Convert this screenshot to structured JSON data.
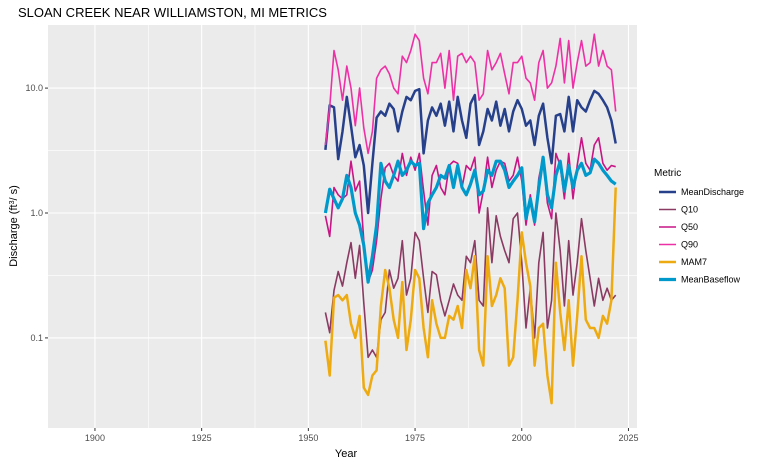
{
  "chart_data": {
    "type": "line",
    "title": "SLOAN CREEK NEAR WILLIAMSTON, MI  METRICS",
    "xlabel": "Year",
    "ylabel_main": "Discharge (ft",
    "ylabel_sup": "3",
    "ylabel_tail": "/ s)",
    "xlim": [
      1889,
      2027
    ],
    "ylim": [
      0.019,
      32
    ],
    "y_scale": "log",
    "grid": true,
    "x_ticks": [
      1900,
      1925,
      1950,
      1975,
      2000,
      2025
    ],
    "x_tick_labels": [
      "1900",
      "1925",
      "1950",
      "1975",
      "2000",
      "2025"
    ],
    "y_ticks": [
      0.1,
      1,
      10
    ],
    "y_tick_labels": [
      "0.1",
      "1.0",
      "10.0"
    ],
    "legend_title": "Metric",
    "legend_position": "right",
    "x": [
      1954,
      1955,
      1956,
      1957,
      1958,
      1959,
      1960,
      1961,
      1962,
      1963,
      1964,
      1965,
      1966,
      1967,
      1968,
      1969,
      1970,
      1971,
      1972,
      1973,
      1974,
      1975,
      1976,
      1977,
      1978,
      1979,
      1980,
      1981,
      1982,
      1983,
      1984,
      1985,
      1986,
      1987,
      1988,
      1989,
      1990,
      1991,
      1992,
      1993,
      1994,
      1995,
      1996,
      1997,
      1998,
      1999,
      2000,
      2001,
      2002,
      2003,
      2004,
      2005,
      2006,
      2007,
      2008,
      2009,
      2010,
      2011,
      2012,
      2013,
      2014,
      2015,
      2016,
      2017,
      2018,
      2019,
      2020,
      2021,
      2022
    ],
    "series": [
      {
        "name": "MeanDischarge",
        "color": "#27408b",
        "width": 2.5,
        "values": [
          3.2,
          7.3,
          7.0,
          2.7,
          4.5,
          8.5,
          5.0,
          2.8,
          3.5,
          2.4,
          1.0,
          2.5,
          5.8,
          6.5,
          6.0,
          7.5,
          6.8,
          4.5,
          6.5,
          8.5,
          8.0,
          9.5,
          9.8,
          3.0,
          5.5,
          7.0,
          6.0,
          7.5,
          5.0,
          7.8,
          4.5,
          8.5,
          5.5,
          4.0,
          7.5,
          8.8,
          3.5,
          4.5,
          6.8,
          5.5,
          7.8,
          5.0,
          6.8,
          4.5,
          6.5,
          8.0,
          6.8,
          5.0,
          5.5,
          3.5,
          6.0,
          7.5,
          4.0,
          2.5,
          6.0,
          6.2,
          4.5,
          8.5,
          4.5,
          8.0,
          7.0,
          6.5,
          8.0,
          9.5,
          9.0,
          8.0,
          7.0,
          5.5,
          3.6
        ]
      },
      {
        "name": "Q10",
        "color": "#8b3a62",
        "width": 1.6,
        "values": [
          0.16,
          0.11,
          0.24,
          0.34,
          0.26,
          0.4,
          0.58,
          0.3,
          0.55,
          0.19,
          0.07,
          0.08,
          0.07,
          0.14,
          0.16,
          0.35,
          0.25,
          0.3,
          0.6,
          0.22,
          0.3,
          0.7,
          0.6,
          0.3,
          0.16,
          0.34,
          0.32,
          0.2,
          0.15,
          0.2,
          0.27,
          0.22,
          0.2,
          0.45,
          0.4,
          0.6,
          0.2,
          0.18,
          1.1,
          0.4,
          0.95,
          0.65,
          0.5,
          0.4,
          0.9,
          1.0,
          0.4,
          0.12,
          0.25,
          0.1,
          0.4,
          0.7,
          0.12,
          0.2,
          1.0,
          0.5,
          0.18,
          0.6,
          0.22,
          0.4,
          0.9,
          0.5,
          0.3,
          0.18,
          0.3,
          0.2,
          0.25,
          0.2,
          0.22
        ]
      },
      {
        "name": "Q50",
        "color": "#c71585",
        "width": 1.6,
        "values": [
          0.95,
          0.65,
          1.6,
          1.4,
          1.3,
          1.4,
          2.6,
          1.5,
          1.8,
          0.6,
          0.28,
          0.35,
          0.6,
          1.3,
          2.3,
          2.5,
          2.0,
          1.8,
          3.0,
          2.0,
          2.8,
          2.2,
          3.0,
          1.5,
          0.8,
          2.0,
          2.4,
          1.6,
          1.4,
          2.4,
          2.6,
          2.5,
          1.6,
          2.4,
          2.2,
          2.8,
          1.0,
          1.5,
          2.8,
          1.6,
          2.2,
          2.6,
          2.5,
          1.8,
          2.0,
          2.8,
          1.8,
          0.8,
          1.4,
          0.8,
          1.9,
          2.8,
          1.2,
          0.9,
          3.0,
          2.4,
          1.3,
          3.0,
          1.3,
          2.4,
          4.0,
          2.5,
          2.2,
          3.5,
          4.0,
          2.5,
          2.2,
          2.4,
          2.35
        ]
      },
      {
        "name": "Q90",
        "color": "#ee30a7",
        "width": 1.6,
        "values": [
          3.5,
          7.0,
          20.0,
          14.0,
          8.0,
          15.0,
          10.0,
          5.0,
          10.0,
          4.8,
          3.0,
          4.5,
          12.0,
          14.0,
          15.0,
          13.0,
          10.0,
          9.0,
          18.0,
          16.0,
          20.0,
          27.0,
          24.0,
          12.0,
          9.0,
          16.0,
          16.0,
          19.0,
          10.0,
          20.0,
          8.0,
          18.0,
          19.0,
          16.0,
          18.0,
          16.0,
          8.0,
          9.0,
          20.0,
          14.0,
          16.0,
          19.0,
          13.0,
          9.0,
          16.0,
          16.0,
          18.0,
          12.0,
          11.0,
          8.0,
          16.0,
          20.0,
          10.0,
          11.0,
          15.0,
          25.0,
          11.0,
          24.0,
          10.0,
          16.0,
          24.0,
          15.0,
          16.0,
          27.0,
          15.0,
          20.0,
          15.0,
          14.0,
          6.5
        ]
      },
      {
        "name": "MAM7",
        "color": "#eeaa11",
        "width": 2.5,
        "values": [
          0.095,
          0.05,
          0.21,
          0.22,
          0.2,
          0.22,
          0.13,
          0.1,
          0.15,
          0.04,
          0.035,
          0.05,
          0.055,
          0.18,
          0.35,
          0.25,
          0.14,
          0.1,
          0.28,
          0.08,
          0.14,
          0.35,
          0.3,
          0.12,
          0.07,
          0.2,
          0.13,
          0.1,
          0.1,
          0.15,
          0.14,
          0.18,
          0.12,
          0.35,
          0.25,
          0.45,
          0.08,
          0.06,
          0.45,
          0.18,
          0.22,
          0.3,
          0.25,
          0.06,
          0.07,
          0.2,
          0.7,
          0.4,
          0.26,
          0.06,
          0.12,
          0.13,
          0.05,
          0.03,
          0.4,
          0.16,
          0.08,
          0.2,
          0.06,
          0.15,
          0.45,
          0.14,
          0.12,
          0.12,
          0.1,
          0.15,
          0.13,
          0.2,
          1.6
        ]
      },
      {
        "name": "MeanBaseflow",
        "color": "#0099cc",
        "width": 3.2,
        "values": [
          1.0,
          1.55,
          1.3,
          1.1,
          1.3,
          2.0,
          1.6,
          1.0,
          0.8,
          0.55,
          0.28,
          0.45,
          0.8,
          2.5,
          1.8,
          1.6,
          2.0,
          2.6,
          2.0,
          2.2,
          2.6,
          2.4,
          2.5,
          0.75,
          1.2,
          1.4,
          1.6,
          2.0,
          1.9,
          2.4,
          1.6,
          2.4,
          1.6,
          1.4,
          1.7,
          2.2,
          1.4,
          1.5,
          2.2,
          2.0,
          2.6,
          2.6,
          2.2,
          1.6,
          1.8,
          2.0,
          2.3,
          0.9,
          1.3,
          0.85,
          1.6,
          2.8,
          1.4,
          1.1,
          2.0,
          2.6,
          1.5,
          2.4,
          1.6,
          2.2,
          2.5,
          2.0,
          2.1,
          2.7,
          2.5,
          2.2,
          2.0,
          1.8,
          1.7
        ]
      }
    ]
  }
}
